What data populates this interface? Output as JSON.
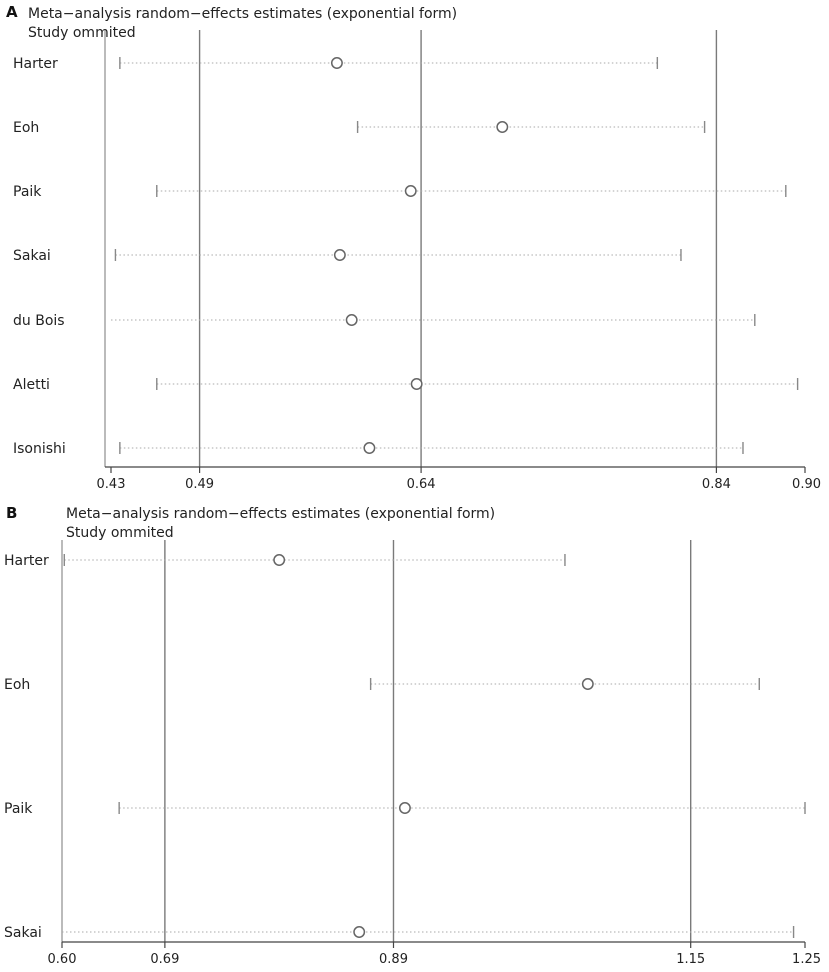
{
  "chart_data": [
    {
      "type": "forest",
      "panel": "A",
      "title": "Meta−analysis random−effects estimates (exponential form)",
      "subtitle": "Study ommited",
      "xlim": [
        0.43,
        0.9
      ],
      "ticks": [
        "0.43",
        "0.49",
        "0.64",
        "0.84",
        "0.90"
      ],
      "tick_values": [
        0.43,
        0.49,
        0.64,
        0.84,
        0.9
      ],
      "reference_lines": [
        0.49,
        0.64,
        0.84
      ],
      "studies": [
        {
          "label": "Harter",
          "estimate": 0.583,
          "lower": 0.436,
          "upper": 0.8
        },
        {
          "label": "Eoh",
          "estimate": 0.695,
          "lower": 0.597,
          "upper": 0.832
        },
        {
          "label": "Paik",
          "estimate": 0.633,
          "lower": 0.461,
          "upper": 0.887
        },
        {
          "label": "Sakai",
          "estimate": 0.585,
          "lower": 0.433,
          "upper": 0.816
        },
        {
          "label": "du Bois",
          "estimate": 0.593,
          "lower": null,
          "upper": 0.866
        },
        {
          "label": "Aletti",
          "estimate": 0.637,
          "lower": 0.461,
          "upper": 0.895
        },
        {
          "label": "Isonishi",
          "estimate": 0.605,
          "lower": 0.436,
          "upper": 0.858
        }
      ]
    },
    {
      "type": "forest",
      "panel": "B",
      "title": "Meta−analysis random−effects estimates (exponential form)",
      "subtitle": "Study ommited",
      "xlim": [
        0.6,
        1.25
      ],
      "ticks": [
        "0.60",
        "0.69",
        "0.89",
        "1.15",
        "1.25"
      ],
      "tick_values": [
        0.6,
        0.69,
        0.89,
        1.15,
        1.25
      ],
      "reference_lines": [
        0.69,
        0.89,
        1.15
      ],
      "studies": [
        {
          "label": "Harter",
          "estimate": 0.79,
          "lower": 0.602,
          "upper": 1.04
        },
        {
          "label": "Eoh",
          "estimate": 1.06,
          "lower": 0.87,
          "upper": 1.21
        },
        {
          "label": "Paik",
          "estimate": 0.9,
          "lower": 0.65,
          "upper": 1.25
        },
        {
          "label": "Sakai",
          "estimate": 0.86,
          "lower": null,
          "upper": 1.24
        }
      ]
    }
  ]
}
